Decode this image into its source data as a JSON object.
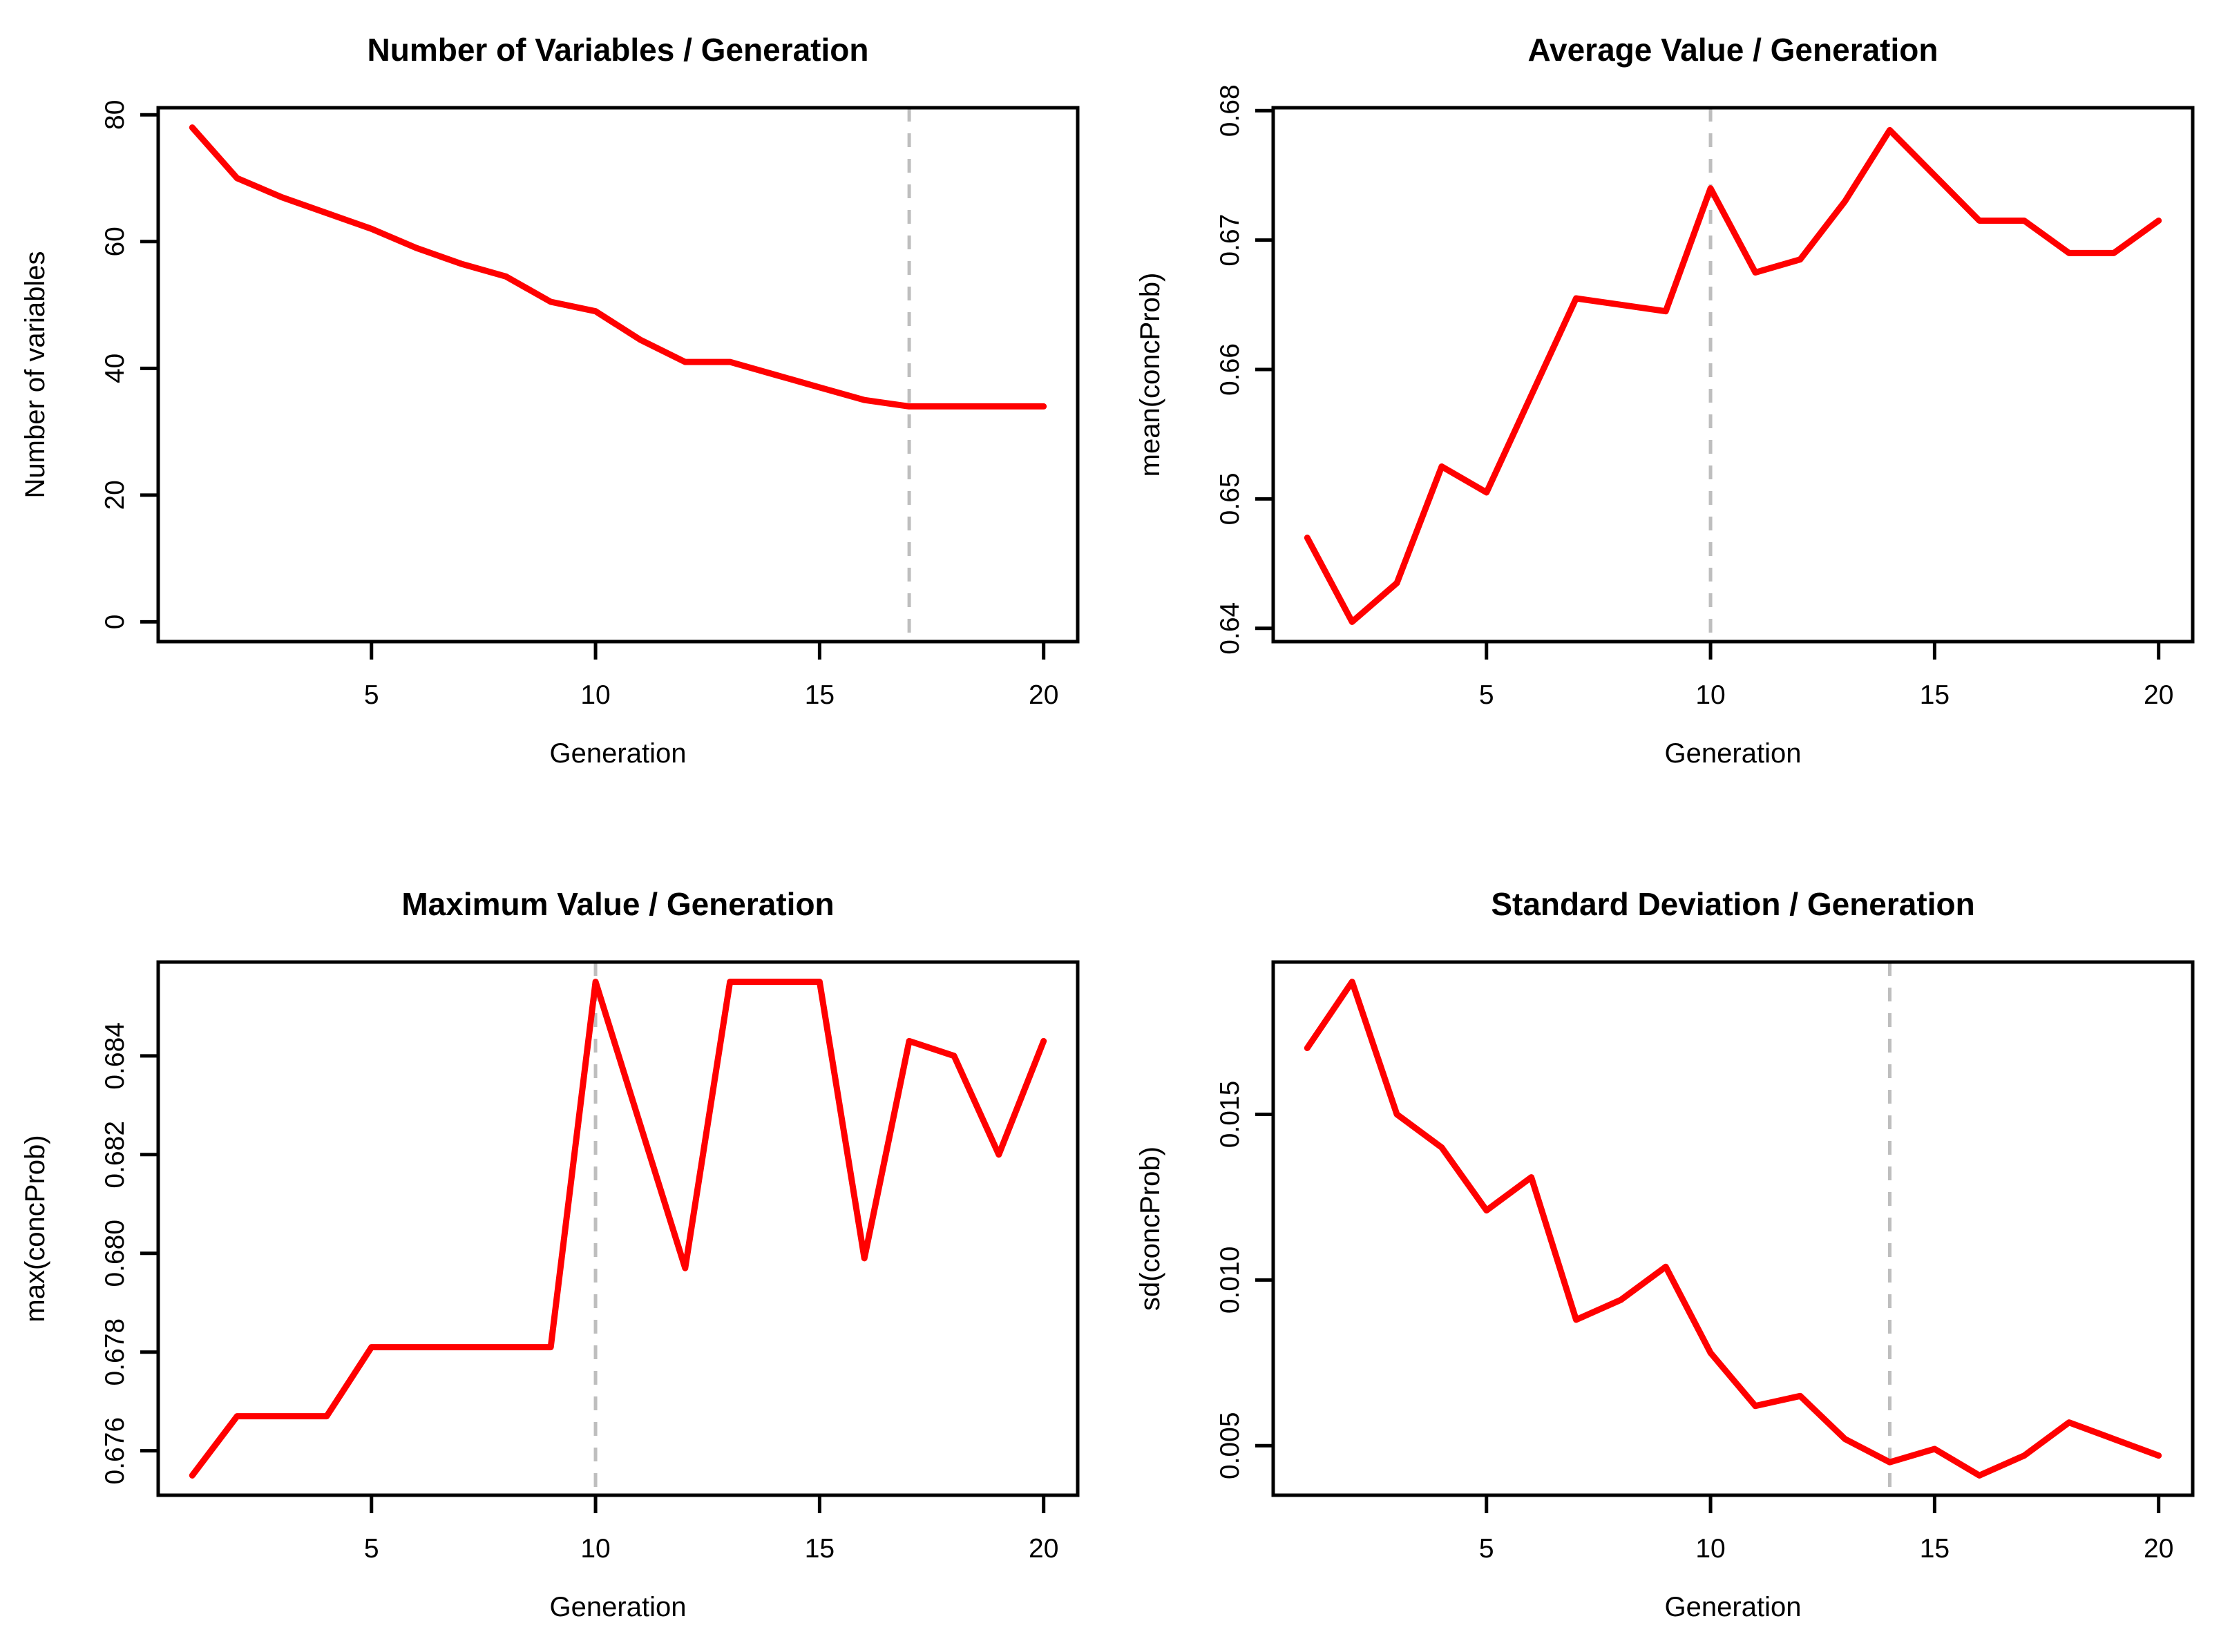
{
  "figure": {
    "background": "#ffffff",
    "series_color": "#ff0000",
    "axis_color": "#000000",
    "dashed_guide_color": "#bebebe"
  },
  "chart_data": [
    {
      "type": "line",
      "panel": "top-left",
      "title": "Number of Variables / Generation",
      "xlabel": "Generation",
      "ylabel": "Number of variables",
      "x": [
        1,
        2,
        3,
        4,
        5,
        6,
        7,
        8,
        9,
        10,
        11,
        12,
        13,
        14,
        15,
        16,
        17,
        18,
        19,
        20
      ],
      "values": [
        78,
        70,
        67,
        64.5,
        62,
        59,
        56.5,
        54.5,
        50.5,
        49,
        44.5,
        41,
        41,
        39,
        37,
        35,
        34,
        34,
        34,
        34
      ],
      "xlim": [
        1,
        20
      ],
      "ylim": [
        0,
        78
      ],
      "xticks": [
        5,
        10,
        15,
        20
      ],
      "yticks": [
        {
          "v": 0,
          "label": "0"
        },
        {
          "v": 20,
          "label": "20"
        },
        {
          "v": 40,
          "label": "40"
        },
        {
          "v": 60,
          "label": "60"
        },
        {
          "v": 80,
          "label": "80"
        }
      ],
      "vline": {
        "x": 17,
        "style": "dashed",
        "color": "#bebebe"
      },
      "line_color": "#ff0000",
      "grid": false,
      "legend": null
    },
    {
      "type": "line",
      "panel": "top-right",
      "title": "Average Value / Generation",
      "xlabel": "Generation",
      "ylabel": "mean(concProb)",
      "x": [
        1,
        2,
        3,
        4,
        5,
        6,
        7,
        8,
        9,
        10,
        11,
        12,
        13,
        14,
        15,
        16,
        17,
        18,
        19,
        20
      ],
      "values": [
        0.647,
        0.6405,
        0.6435,
        0.6525,
        0.6505,
        0.658,
        0.6655,
        0.665,
        0.6645,
        0.674,
        0.6675,
        0.6685,
        0.673,
        0.6785,
        0.675,
        0.6715,
        0.6715,
        0.669,
        0.669,
        0.6715
      ],
      "xlim": [
        1,
        20
      ],
      "ylim": [
        0.6405,
        0.6787
      ],
      "xticks": [
        5,
        10,
        15,
        20
      ],
      "yticks": [
        {
          "v": 0.64,
          "label": "0.64"
        },
        {
          "v": 0.65,
          "label": "0.65"
        },
        {
          "v": 0.66,
          "label": "0.66"
        },
        {
          "v": 0.67,
          "label": "0.67"
        },
        {
          "v": 0.68,
          "label": "0.68"
        }
      ],
      "vline": {
        "x": 10,
        "style": "dashed",
        "color": "#bebebe"
      },
      "line_color": "#ff0000",
      "grid": false,
      "legend": null
    },
    {
      "type": "line",
      "panel": "bottom-left",
      "title": "Maximum Value / Generation",
      "xlabel": "Generation",
      "ylabel": "max(concProb)",
      "x": [
        1,
        2,
        3,
        4,
        5,
        6,
        7,
        8,
        9,
        10,
        11,
        12,
        13,
        14,
        15,
        16,
        17,
        18,
        19,
        20
      ],
      "values": [
        0.6755,
        0.6767,
        0.6767,
        0.6767,
        0.6781,
        0.6781,
        0.6781,
        0.6781,
        0.6781,
        0.6855,
        0.6826,
        0.6797,
        0.6855,
        0.6855,
        0.6855,
        0.6799,
        0.6843,
        0.684,
        0.682,
        0.6843
      ],
      "xlim": [
        1,
        20
      ],
      "ylim": [
        0.6755,
        0.6855
      ],
      "xticks": [
        5,
        10,
        15,
        20
      ],
      "yticks": [
        {
          "v": 0.676,
          "label": "0.676"
        },
        {
          "v": 0.678,
          "label": "0.678"
        },
        {
          "v": 0.68,
          "label": "0.680"
        },
        {
          "v": 0.682,
          "label": "0.682"
        },
        {
          "v": 0.684,
          "label": "0.684"
        }
      ],
      "vline": {
        "x": 10,
        "style": "dashed",
        "color": "#bebebe"
      },
      "line_color": "#ff0000",
      "grid": false,
      "legend": null
    },
    {
      "type": "line",
      "panel": "bottom-right",
      "title": "Standard Deviation / Generation",
      "xlabel": "Generation",
      "ylabel": "sd(concProb)",
      "x": [
        1,
        2,
        3,
        4,
        5,
        6,
        7,
        8,
        9,
        10,
        11,
        12,
        13,
        14,
        15,
        16,
        17,
        18,
        19,
        20
      ],
      "values": [
        0.017,
        0.019,
        0.015,
        0.014,
        0.0121,
        0.0131,
        0.0088,
        0.0094,
        0.0104,
        0.0078,
        0.0062,
        0.0065,
        0.0052,
        0.0045,
        0.0049,
        0.0041,
        0.0047,
        0.0057,
        0.0052,
        0.0047
      ],
      "xlim": [
        1,
        20
      ],
      "ylim": [
        0.0041,
        0.019
      ],
      "xticks": [
        5,
        10,
        15,
        20
      ],
      "yticks": [
        {
          "v": 0.005,
          "label": "0.005"
        },
        {
          "v": 0.01,
          "label": "0.010"
        },
        {
          "v": 0.015,
          "label": "0.015"
        }
      ],
      "vline": {
        "x": 14,
        "style": "dashed",
        "color": "#bebebe"
      },
      "line_color": "#ff0000",
      "grid": false,
      "legend": null
    }
  ]
}
